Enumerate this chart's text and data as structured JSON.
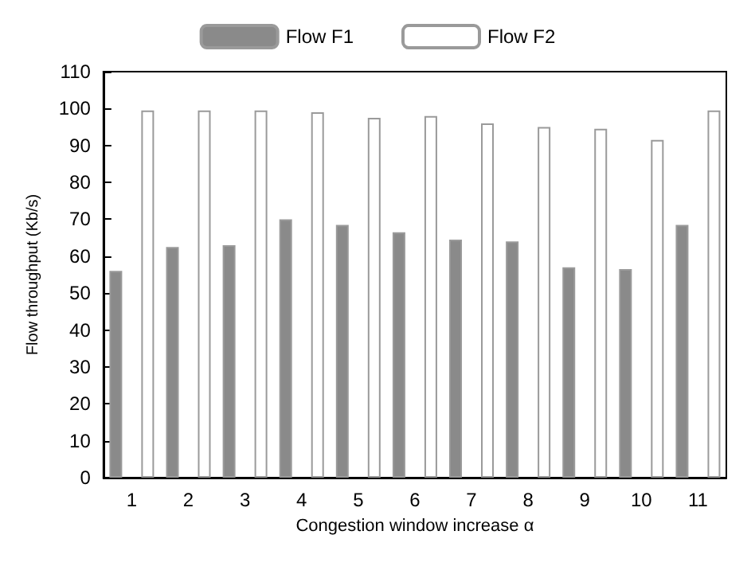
{
  "chart_data": {
    "type": "bar",
    "xlabel": "Congestion window increase α",
    "ylabel": "Flow throughput (Kb/s)",
    "categories": [
      "1",
      "2",
      "3",
      "4",
      "5",
      "6",
      "7",
      "8",
      "9",
      "10",
      "11"
    ],
    "series": [
      {
        "name": "Flow F1",
        "color": "#8a8a8a",
        "values": [
          56,
          62.5,
          63,
          70,
          68.5,
          66.5,
          64.5,
          64,
          57,
          56.5,
          68.5
        ]
      },
      {
        "name": "Flow F2",
        "color": "#ffffff",
        "values": [
          99.5,
          99.5,
          99.5,
          99,
          97.5,
          98,
          96,
          95,
          94.5,
          91.5,
          99.5
        ]
      }
    ],
    "ylim": [
      0,
      110
    ],
    "yticks": [
      0,
      10,
      20,
      30,
      40,
      50,
      60,
      70,
      80,
      90,
      100,
      110
    ],
    "grid": false,
    "legend": "top"
  }
}
